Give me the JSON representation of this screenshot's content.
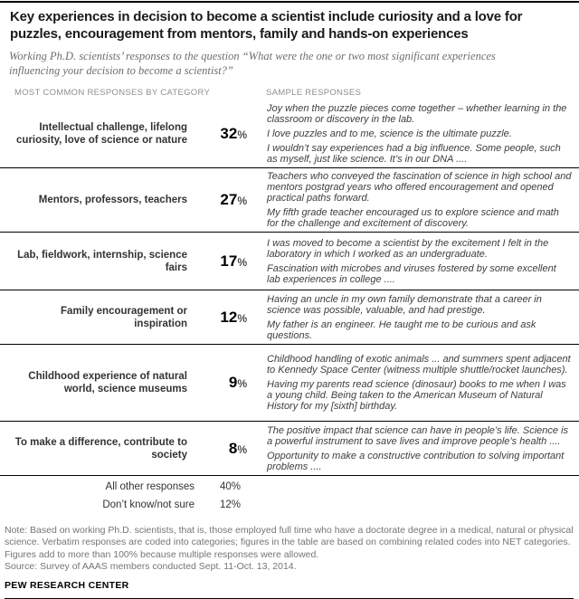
{
  "header": {
    "title": "Key experiences in decision to become a scientist include curiosity and a love for puzzles, encouragement from mentors, family and hands-on experiences",
    "subtitle": "Working Ph.D. scientists’ responses to the question “What were the one or two most significant experiences influencing your decision to become a scientist?”"
  },
  "table": {
    "col_headers": {
      "left": "MOST COMMON RESPONSES BY CATEGORY",
      "right": "SAMPLE RESPONSES"
    },
    "percent_sign": "%",
    "rows": [
      {
        "category": "Intellectual challenge, lifelong curiosity, love of science or nature",
        "value": "32",
        "samples": [
          "Joy when the puzzle pieces come together – whether learning in the classroom or discovery in the lab.",
          "I love puzzles and to me, science is the ultimate puzzle.",
          "I wouldn’t say experiences had a big influence. Some people, such as myself, just like science. It’s in our DNA ...."
        ]
      },
      {
        "category": "Mentors, professors, teachers",
        "value": "27",
        "samples": [
          "Teachers who conveyed the fascination of science in high school and mentors postgrad years who offered encouragement and opened practical paths forward.",
          "My fifth grade teacher encouraged us to explore science and math for the challenge and excitement of discovery."
        ]
      },
      {
        "category": "Lab, fieldwork, internship, science fairs",
        "value": "17",
        "samples": [
          "I was moved to become a scientist by the excitement I felt in the laboratory in which I worked as an undergraduate.",
          "Fascination with microbes and viruses fostered by some excellent lab experiences in college ...."
        ]
      },
      {
        "category": "Family encouragement or inspiration",
        "value": "12",
        "samples": [
          "Having an uncle in my own family demonstrate that a career in science was possible, valuable, and had prestige.",
          "My father is an engineer. He taught me to be curious and ask questions."
        ]
      },
      {
        "category": "Childhood experience of natural world, science museums",
        "value": "9",
        "samples": [
          "Childhood handling of exotic animals ... and summers spent adjacent to Kennedy Space Center (witness multiple shuttle/rocket launches).",
          "Having my parents read science (dinosaur) books to me when I was a young child. Being taken to the American Museum of Natural History for my [sixth] birthday."
        ]
      },
      {
        "category": "To make a difference, contribute to society",
        "value": "8",
        "samples": [
          "The positive impact that science can have in people’s life. Science is a powerful instrument to save lives and improve people’s health ....",
          "Opportunity to make a constructive contribution to solving important problems ...."
        ]
      }
    ],
    "summary": [
      {
        "label": "All other responses",
        "value": "40%"
      },
      {
        "label": "Don’t know/not sure",
        "value": "12%"
      }
    ]
  },
  "footer": {
    "note": "Note: Based on working Ph.D. scientists, that is, those employed full time who have a doctorate degree in a medical, natural or physical science. Verbatim responses are coded into categories; figures in the table are based on combining related codes into NET categories. Figures add to more than 100% because multiple responses were allowed.",
    "source": "Source: Survey of AAAS members conducted Sept. 11-Oct. 13, 2014.",
    "brand": "PEW RESEARCH CENTER"
  },
  "colors": {
    "rule": "#000000",
    "title_text": "#1a1a1a",
    "subtitle_gray": "#6e6e6e",
    "column_header_gray": "#8f8f8f",
    "body_gray": "#3d3d3d",
    "note_gray": "#757575"
  },
  "chart_data": {
    "type": "table",
    "title": "Key experiences in decision to become a scientist include curiosity and a love for puzzles, encouragement from mentors, family and hands-on experiences",
    "subtitle": "Working Ph.D. scientists’ responses to the question “What were the one or two most significant experiences influencing your decision to become a scientist?”",
    "columns": [
      "MOST COMMON RESPONSES BY CATEGORY",
      "%",
      "SAMPLE RESPONSES"
    ],
    "categories": [
      "Intellectual challenge, lifelong curiosity, love of science or nature",
      "Mentors, professors, teachers",
      "Lab, fieldwork, internship, science fairs",
      "Family encouragement or inspiration",
      "Childhood experience of natural world, science museums",
      "To make a difference, contribute to society",
      "All other responses",
      "Don’t know/not sure"
    ],
    "values": [
      32,
      27,
      17,
      12,
      9,
      8,
      40,
      12
    ],
    "unit": "percent"
  }
}
